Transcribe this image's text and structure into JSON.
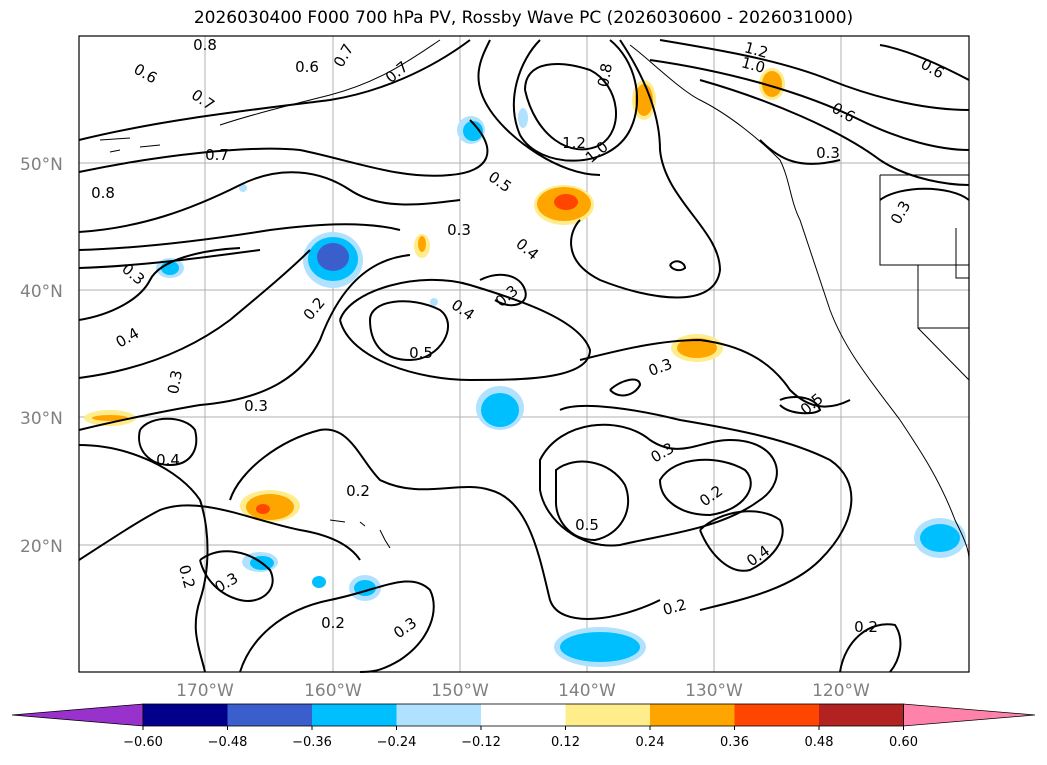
{
  "title": "2026030400 F000 700 hPa PV, Rossby Wave PC (2026030600 - 2026031000)",
  "map": {
    "lat_labels": [
      "50°N",
      "40°N",
      "30°N",
      "20°N"
    ],
    "lon_labels": [
      "170°W",
      "160°W",
      "150°W",
      "140°W",
      "130°W",
      "120°W"
    ],
    "contour_labels": [
      "0.8",
      "0.6",
      "0.7",
      "0.7",
      "0.6",
      "0.7",
      "0.8",
      "1.2",
      "1.0",
      "0.6",
      "1.2",
      "1.0",
      "0.6",
      "0.3",
      "0.3",
      "0.7",
      "0.8",
      "0.5",
      "0.3",
      "0.4",
      "0.3",
      "0.3",
      "0.2",
      "0.4",
      "0.4",
      "0.5",
      "0.3",
      "0.3",
      "0.5",
      "0.3",
      "0.4",
      "0.3",
      "0.2",
      "0.5",
      "0.2",
      "0.4",
      "0.2",
      "0.2",
      "0.3",
      "0.2",
      "0.3",
      "0.2"
    ]
  },
  "colorbar": {
    "colors": [
      "#9932cc",
      "#00008b",
      "#3a5fcd",
      "#00bfff",
      "#b0e2ff",
      "#ffffff",
      "#ffec8b",
      "#ffa500",
      "#ff4500",
      "#b22222",
      "#ff82ab"
    ],
    "ticks": [
      "−0.60",
      "−0.48",
      "−0.36",
      "−0.24",
      "−0.12",
      "0.12",
      "0.24",
      "0.36",
      "0.48",
      "0.60"
    ]
  }
}
